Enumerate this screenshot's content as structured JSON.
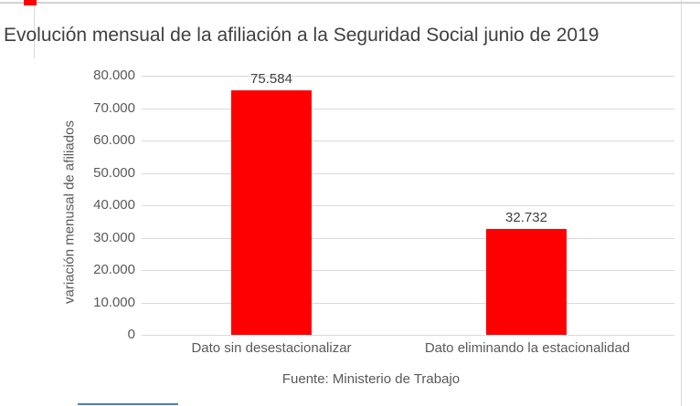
{
  "chart_data": {
    "type": "bar",
    "title": "Evolución mensual de la afiliación a la Seguridad Social junio de 2019",
    "ylabel": "variación menusal de afiliados",
    "source": "Fuente: Ministerio de Trabajo",
    "categories": [
      "Dato sin desestacionalizar",
      "Dato eliminando la estacionalidad"
    ],
    "values": [
      75584,
      32732
    ],
    "value_labels": [
      "75.584",
      "32.732"
    ],
    "ylim": [
      0,
      80000
    ],
    "ytick_step": 10000,
    "yticks": [
      {
        "value": 0,
        "label": "0"
      },
      {
        "value": 10000,
        "label": "10.000"
      },
      {
        "value": 20000,
        "label": "20.000"
      },
      {
        "value": 30000,
        "label": "30.000"
      },
      {
        "value": 40000,
        "label": "40.000"
      },
      {
        "value": 50000,
        "label": "50.000"
      },
      {
        "value": 60000,
        "label": "60.000"
      },
      {
        "value": 70000,
        "label": "70.000"
      },
      {
        "value": 80000,
        "label": "80.000"
      }
    ],
    "legend": "none",
    "grid": true,
    "colors": {
      "bar": "#ff0000",
      "gridline": "#d9d9d9",
      "axis_text": "#595959",
      "title_text": "#404040",
      "value_label_text": "#404040",
      "cell_border": "#d3d3d3",
      "corner_mark": "#ff0000",
      "bottom_mark": "#4a7ebb"
    }
  }
}
